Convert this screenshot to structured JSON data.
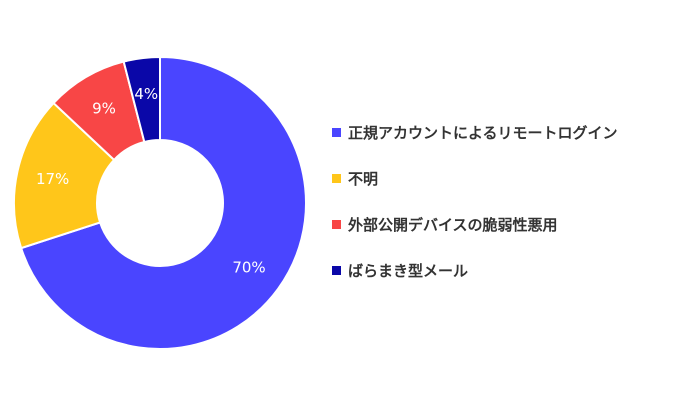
{
  "chart_data": {
    "type": "pie",
    "donut": true,
    "categories": [
      "正規アカウントによるリモートログイン",
      "不明",
      "外部公開デバイスの脆弱性悪用",
      "ばらまき型メール"
    ],
    "values": [
      70,
      17,
      9,
      4
    ],
    "value_labels": [
      "70%",
      "17%",
      "9%",
      "4%"
    ],
    "colors": [
      "#4A45FF",
      "#FFC61A",
      "#F84646",
      "#0A07A8"
    ],
    "start_angle": "12 o'clock",
    "direction": "clockwise",
    "legend_position": "right"
  }
}
